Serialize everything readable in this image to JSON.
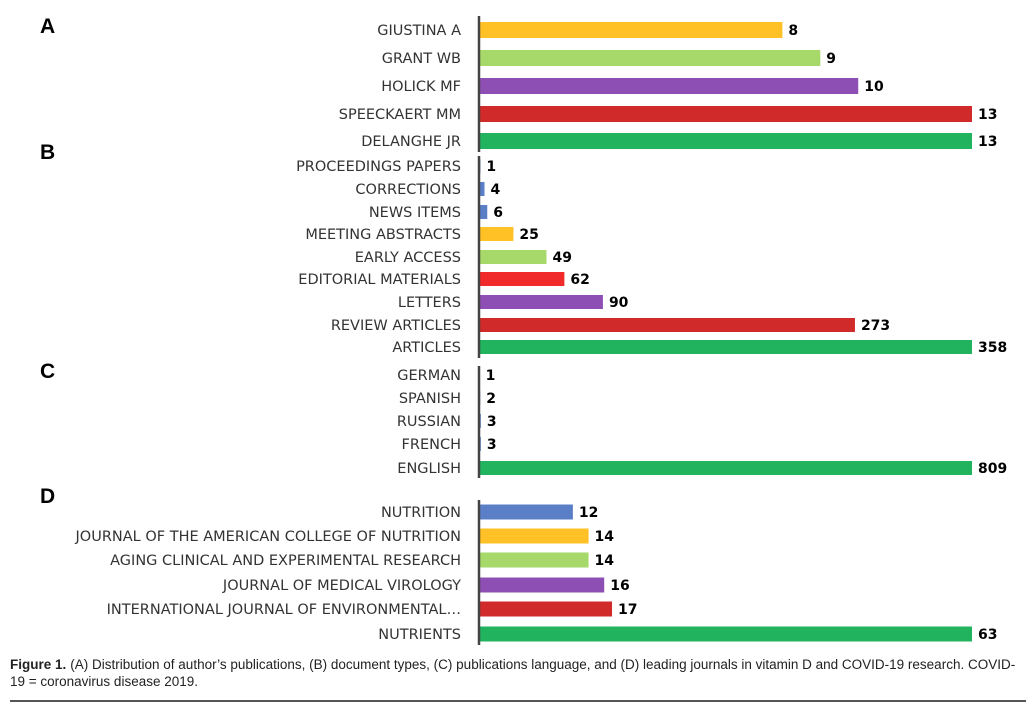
{
  "chart_data": [
    {
      "type": "bar",
      "orientation": "horizontal",
      "panel": "A",
      "title": "Distribution of author's publications",
      "categories": [
        "GIUSTINA A",
        "GRANT WB",
        "HOLICK MF",
        "SPEECKAERT MM",
        "DELANGHE JR"
      ],
      "values": [
        8,
        9,
        10,
        13,
        13
      ],
      "colors": [
        "#ffc125",
        "#a6d96a",
        "#8e4fb5",
        "#d02a2a",
        "#22b35e"
      ],
      "xlim": [
        0,
        13
      ]
    },
    {
      "type": "bar",
      "orientation": "horizontal",
      "panel": "B",
      "title": "Document types",
      "categories": [
        "PROCEEDINGS PAPERS",
        "CORRECTIONS",
        "NEWS ITEMS",
        "MEETING ABSTRACTS",
        "EARLY ACCESS",
        "EDITORIAL MATERIALS",
        "LETTERS",
        "REVIEW ARTICLES",
        "ARTICLES"
      ],
      "values": [
        1,
        4,
        6,
        25,
        49,
        62,
        90,
        273,
        358
      ],
      "colors": [
        "#5b7fc7",
        "#5b7fc7",
        "#5b7fc7",
        "#ffc125",
        "#a6d96a",
        "#f02a2a",
        "#8e4fb5",
        "#d02a2a",
        "#22b35e"
      ],
      "xlim": [
        0,
        358
      ]
    },
    {
      "type": "bar",
      "orientation": "horizontal",
      "panel": "C",
      "title": "Publications language",
      "categories": [
        "GERMAN",
        "SPANISH",
        "RUSSIAN",
        "FRENCH",
        "ENGLISH"
      ],
      "values": [
        1,
        2,
        3,
        3,
        809
      ],
      "colors": [
        "#5b7fc7",
        "#5b7fc7",
        "#5b7fc7",
        "#5b7fc7",
        "#22b35e"
      ],
      "xlim": [
        0,
        809
      ]
    },
    {
      "type": "bar",
      "orientation": "horizontal",
      "panel": "D",
      "title": "Leading journals",
      "categories": [
        "NUTRITION",
        "JOURNAL OF THE AMERICAN COLLEGE OF NUTRITION",
        "AGING CLINICAL AND EXPERIMENTAL RESEARCH",
        "JOURNAL OF MEDICAL VIROLOGY",
        "INTERNATIONAL JOURNAL OF ENVIRONMENTAL…",
        "NUTRIENTS"
      ],
      "values": [
        12,
        14,
        14,
        16,
        17,
        63
      ],
      "colors": [
        "#5b7fc7",
        "#ffc125",
        "#a6d96a",
        "#8e4fb5",
        "#d02a2a",
        "#22b35e"
      ],
      "xlim": [
        0,
        63
      ]
    }
  ],
  "caption": {
    "label": "Figure 1.",
    "text": "(A) Distribution of author’s publications, (B) document types, (C) publications language, and (D) leading journals in vitamin D and COVID-19 research. COVID-19 = coronavirus disease 2019."
  }
}
